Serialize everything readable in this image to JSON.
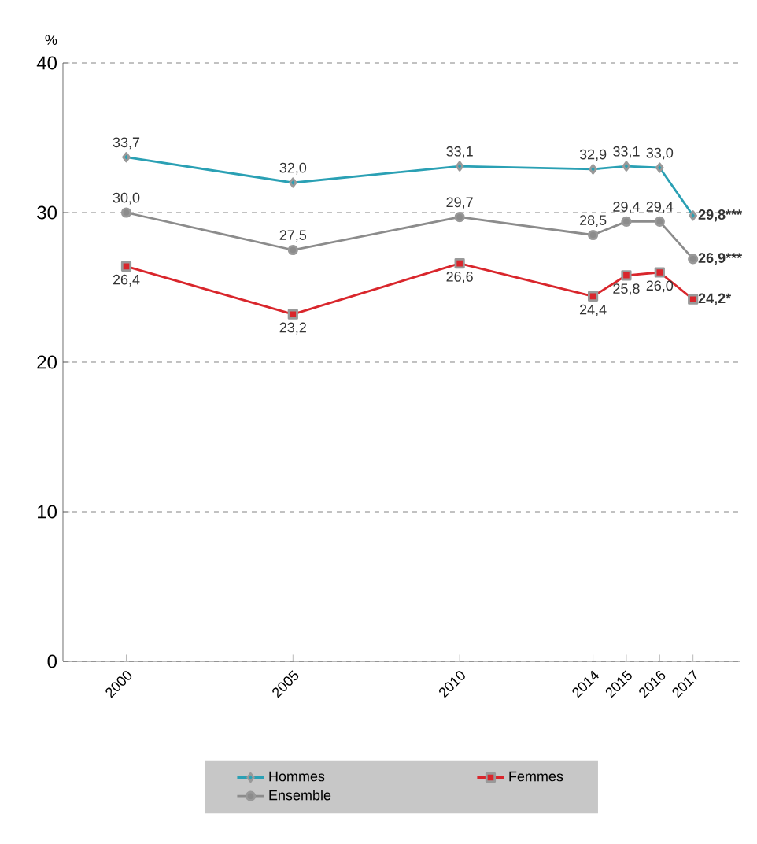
{
  "chart_data": {
    "type": "line",
    "ylabel": "%",
    "x": [
      2000,
      2005,
      2010,
      2014,
      2015,
      2016,
      2017
    ],
    "xlim": [
      1998.1,
      2018.4
    ],
    "ylim": [
      0,
      40
    ],
    "xticks": [
      2000,
      2005,
      2010,
      2014,
      2015,
      2016,
      2017
    ],
    "yticks": [
      0,
      10,
      20,
      30,
      40
    ],
    "grid": "y",
    "legend": "bottom",
    "line_style": "solid",
    "series": [
      {
        "name": "Hommes",
        "color": "#2aa0b4",
        "marker": "diamond",
        "values": [
          33.7,
          32.0,
          33.1,
          32.9,
          33.1,
          33.0,
          29.8
        ],
        "value_labels": [
          "33,7",
          "32,0",
          "33,1",
          "32,9",
          "33,1",
          "33,0",
          "29,8***"
        ]
      },
      {
        "name": "Femmes",
        "color": "#d9262c",
        "marker": "square",
        "values": [
          26.4,
          23.2,
          26.6,
          24.4,
          25.8,
          26.0,
          24.2
        ],
        "value_labels": [
          "26,4",
          "23,2",
          "26,6",
          "24,4",
          "25,8",
          "26,0",
          "24,2*"
        ]
      },
      {
        "name": "Ensemble",
        "color": "#8c8c8c",
        "marker": "circle",
        "values": [
          30.0,
          27.5,
          29.7,
          28.5,
          29.4,
          29.4,
          26.9
        ],
        "value_labels": [
          "30,0",
          "27,5",
          "29,7",
          "28,5",
          "29,4",
          "29,4",
          "26,9***"
        ]
      }
    ]
  }
}
